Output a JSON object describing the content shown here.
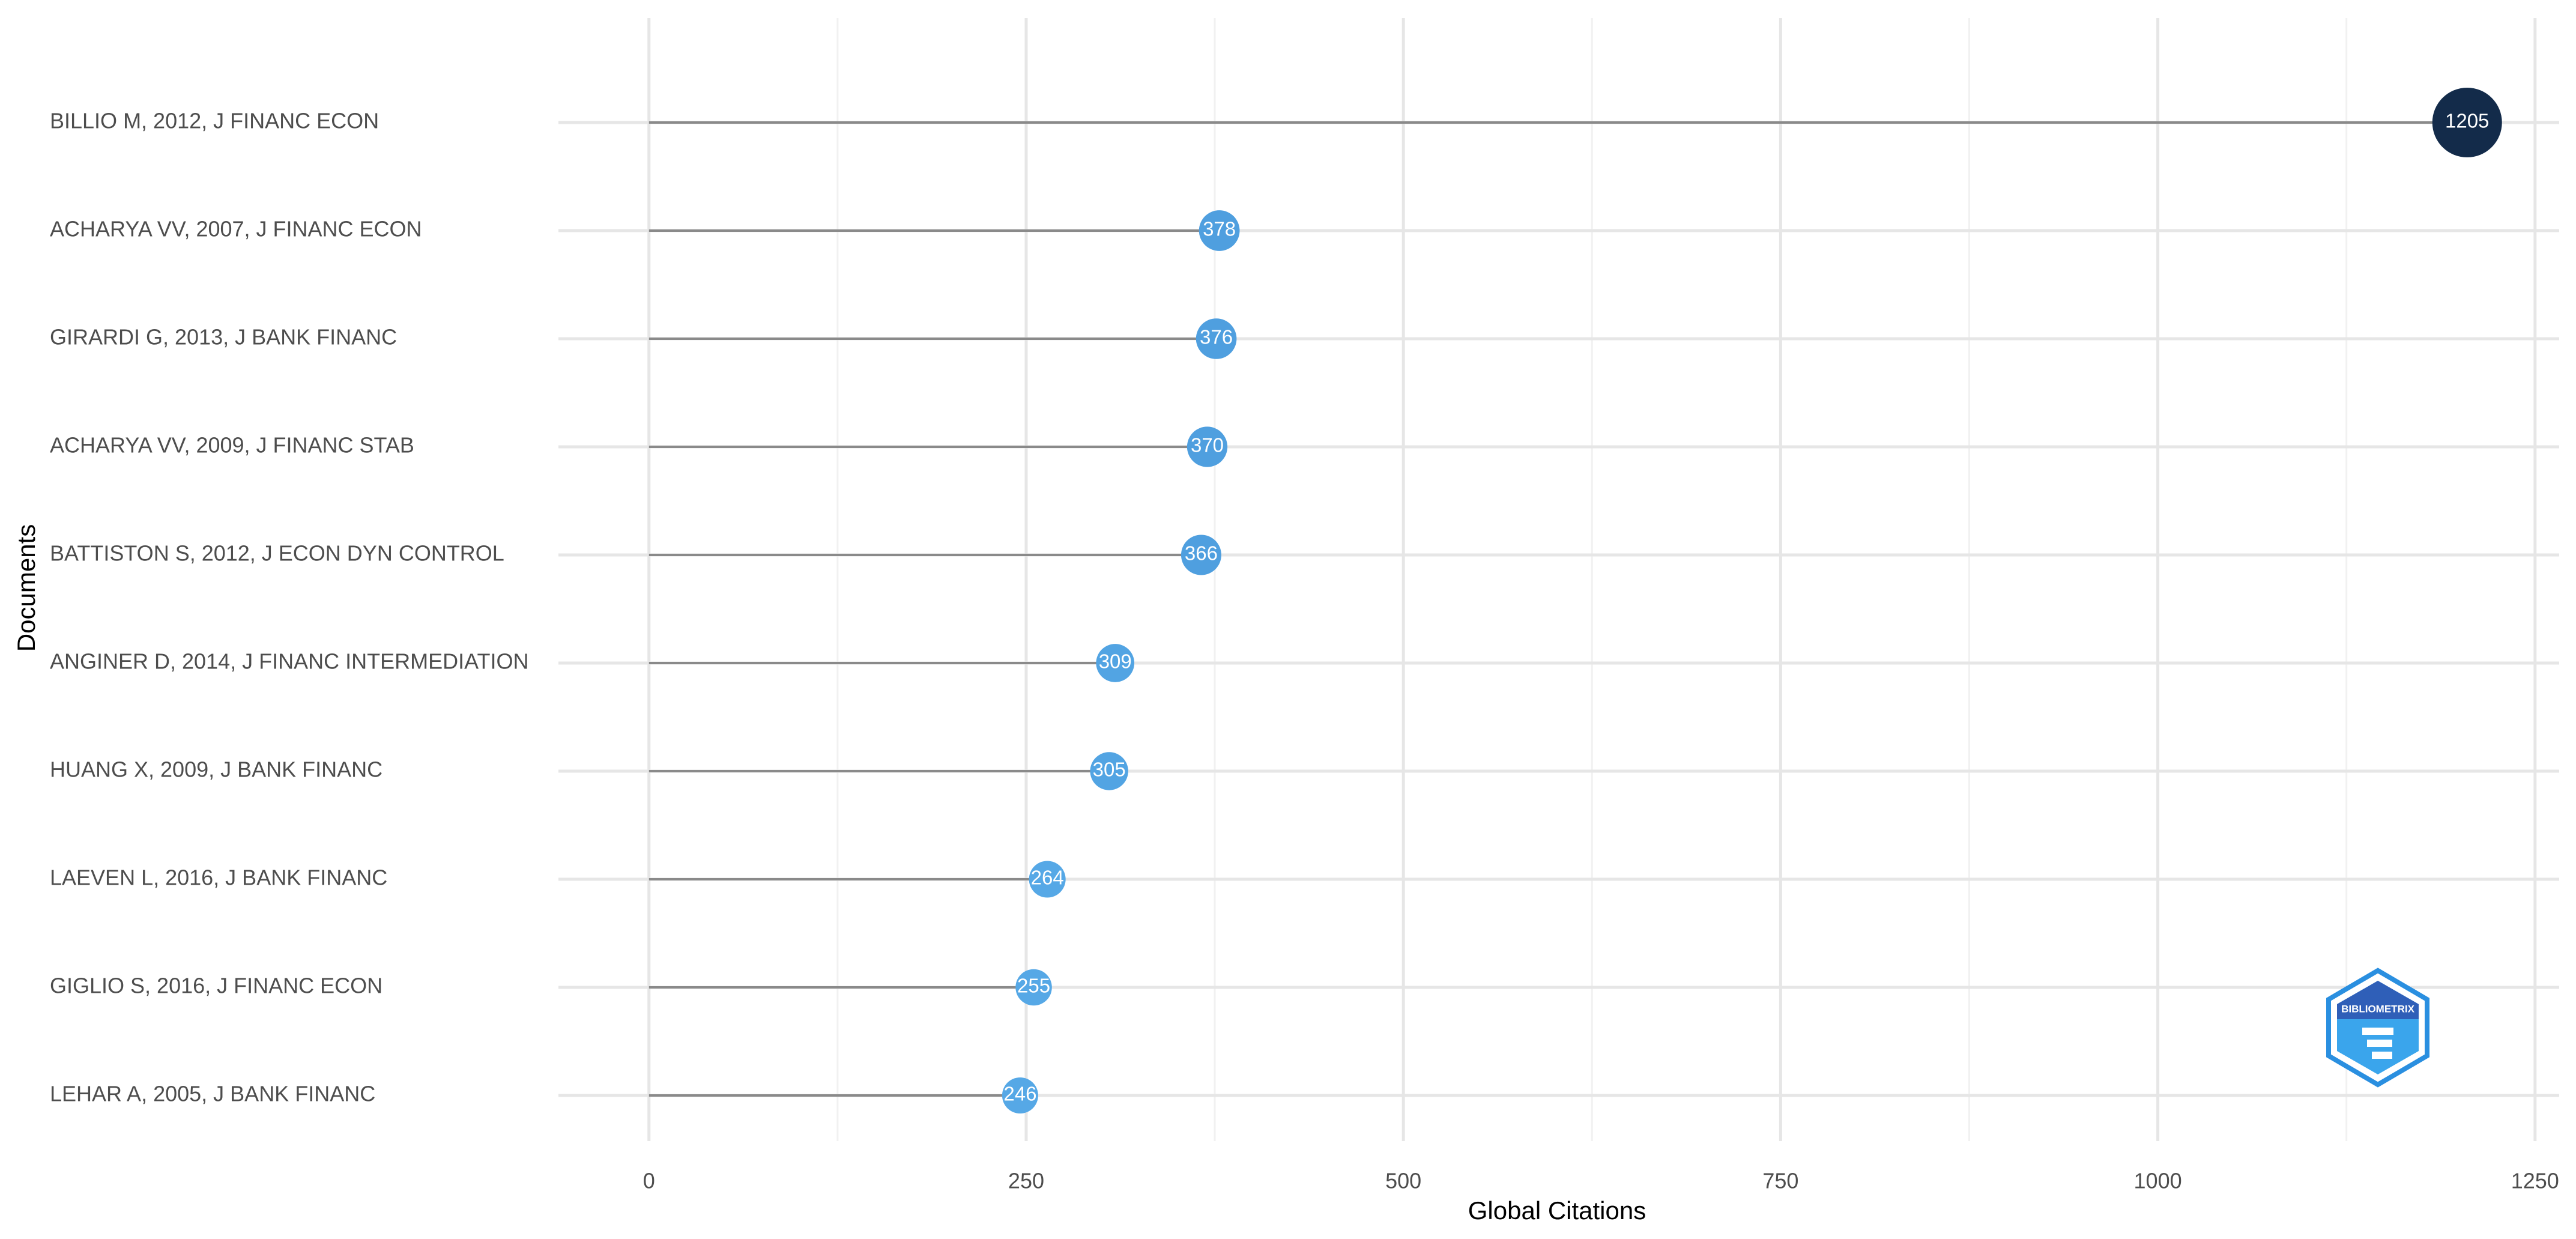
{
  "chart_data": {
    "type": "lollipop",
    "x_label": "Global Citations",
    "y_label": "Documents",
    "categories": [
      "BILLIO M, 2012, J FINANC ECON",
      "ACHARYA VV, 2007, J FINANC ECON",
      "GIRARDI G, 2013, J BANK FINANC",
      "ACHARYA VV, 2009, J FINANC STAB",
      "BATTISTON S, 2012, J ECON DYN CONTROL",
      "ANGINER D, 2014, J FINANC INTERMEDIATION",
      "HUANG X, 2009, J BANK FINANC",
      "LAEVEN L, 2016, J BANK FINANC",
      "GIGLIO S, 2016, J FINANC ECON",
      "LEHAR A, 2005, J BANK FINANC"
    ],
    "values": [
      1205,
      378,
      376,
      370,
      366,
      309,
      305,
      264,
      255,
      246
    ],
    "colors": [
      "#132b4a",
      "#4f9fdf",
      "#4f9fdf",
      "#4f9fdf",
      "#4f9fdf",
      "#52a4e3",
      "#52a4e3",
      "#56a8e6",
      "#56a8e6",
      "#56a8e6"
    ],
    "stem_color": "#8a8a8a",
    "xlim": [
      -60,
      1266
    ],
    "xticks": [
      0,
      250,
      500,
      750,
      1000,
      1250
    ],
    "xminor": [
      125,
      375,
      625,
      875,
      1125
    ],
    "grid": true,
    "watermark": "BIBLIOMETRIX"
  }
}
